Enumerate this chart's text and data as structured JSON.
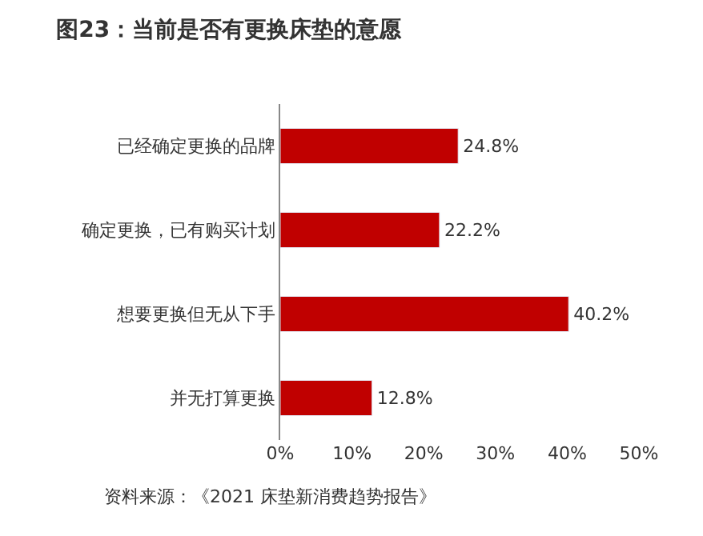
{
  "chart_data": {
    "type": "bar",
    "orientation": "horizontal",
    "title": "图23：当前是否有更换床垫的意愿",
    "categories": [
      "已经确定更换的品牌",
      "确定更换，已有购买计划",
      "想要更换但无从下手",
      "并无打算更换"
    ],
    "values": [
      24.8,
      22.2,
      40.2,
      12.8
    ],
    "value_labels": [
      "24.8%",
      "22.2%",
      "40.2%",
      "12.8%"
    ],
    "color": "#c00000",
    "xlim": [
      0,
      50
    ],
    "xticks": [
      {
        "value": 0,
        "label": "0%"
      },
      {
        "value": 10,
        "label": "10%"
      },
      {
        "value": 20,
        "label": "20%"
      },
      {
        "value": 30,
        "label": "30%"
      },
      {
        "value": 40,
        "label": "40%"
      },
      {
        "value": 50,
        "label": "50%"
      }
    ],
    "legend": false,
    "annotations": [
      "资料来源：《2021 床垫新消费趋势报告》"
    ]
  }
}
